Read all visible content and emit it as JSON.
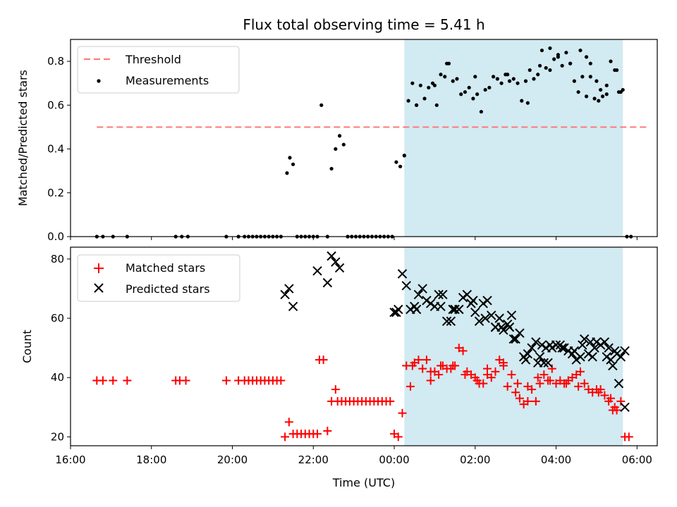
{
  "chart_data": [
    {
      "type": "scatter",
      "title": "Flux total observing time = 5.41 h",
      "ylabel": "Matched/Predicted stars",
      "xlim": [
        16.0,
        30.5
      ],
      "ylim": [
        0.0,
        0.9
      ],
      "yticks": [
        "0.0",
        "0.2",
        "0.4",
        "0.6",
        "0.8"
      ],
      "ytick_values": [
        0.0,
        0.2,
        0.4,
        0.6,
        0.8
      ],
      "grid": false,
      "legend": {
        "placement": "top-left",
        "entries": [
          "Threshold",
          "Measurements"
        ]
      },
      "shaded_span": {
        "x0": 24.25,
        "x1": 29.65,
        "color": "#add8e6"
      },
      "threshold": {
        "name": "Threshold",
        "y": 0.5,
        "x0": 16.65,
        "x1": 30.3,
        "color": "#ff7777"
      },
      "measurements": {
        "name": "Measurements",
        "color": "#000000",
        "x": [
          16.65,
          16.8,
          17.05,
          17.4,
          18.6,
          18.75,
          18.9,
          19.85,
          20.15,
          20.3,
          20.4,
          20.5,
          20.6,
          20.7,
          20.8,
          20.9,
          21.0,
          21.1,
          21.2,
          21.35,
          21.42,
          21.5,
          21.6,
          21.7,
          21.8,
          21.9,
          22.0,
          22.1,
          22.2,
          22.35,
          22.45,
          22.55,
          22.65,
          22.75,
          22.85,
          22.95,
          23.05,
          23.15,
          23.25,
          23.35,
          23.45,
          23.55,
          23.65,
          23.75,
          23.85,
          23.95,
          24.05,
          24.15,
          24.25,
          24.35,
          24.45,
          24.55,
          24.65,
          24.75,
          24.85,
          24.95,
          25.05,
          25.15,
          25.25,
          25.35,
          25.45,
          25.55,
          25.65,
          25.75,
          25.85,
          25.95,
          26.05,
          26.15,
          26.25,
          26.35,
          26.45,
          26.55,
          26.65,
          26.75,
          26.85,
          26.95,
          27.05,
          27.15,
          27.25,
          27.35,
          27.45,
          27.55,
          27.65,
          27.75,
          27.85,
          27.95,
          28.05,
          28.15,
          28.25,
          28.35,
          28.45,
          28.55,
          28.65,
          28.75,
          28.85,
          28.95,
          29.05,
          29.15,
          29.25,
          29.35,
          29.45,
          29.55,
          29.65,
          29.75,
          29.85
        ],
        "y": [
          0.0,
          0.0,
          0.0,
          0.0,
          0.0,
          0.0,
          0.0,
          0.0,
          0.0,
          0.0,
          0.0,
          0.0,
          0.0,
          0.0,
          0.0,
          0.0,
          0.0,
          0.0,
          0.0,
          0.29,
          0.36,
          0.33,
          0.0,
          0.0,
          0.0,
          0.0,
          0.0,
          0.0,
          0.6,
          0.0,
          0.31,
          0.4,
          0.46,
          0.42,
          0.0,
          0.0,
          0.0,
          0.0,
          0.0,
          0.0,
          0.0,
          0.0,
          0.0,
          0.0,
          0.0,
          0.0,
          0.34,
          0.32,
          0.37,
          0.62,
          0.7,
          0.6,
          0.69,
          0.63,
          0.68,
          0.7,
          0.6,
          0.74,
          0.73,
          0.79,
          0.71,
          0.72,
          0.65,
          0.66,
          0.68,
          0.63,
          0.65,
          0.57,
          0.67,
          0.68,
          0.73,
          0.72,
          0.7,
          0.74,
          0.71,
          0.72,
          0.7,
          0.62,
          0.71,
          0.76,
          0.72,
          0.74,
          0.85,
          0.77,
          0.86,
          0.81,
          0.83,
          0.78,
          0.84,
          0.79,
          0.71,
          0.66,
          0.73,
          0.64,
          0.73,
          0.63,
          0.62,
          0.64,
          0.65,
          0.8,
          0.76,
          0.66,
          0.67,
          0.0,
          0.0
        ],
        "points_extra_top": [
          [
            24.25,
            0.37
          ],
          [
            24.55,
            0.6
          ],
          [
            25.0,
            0.69
          ],
          [
            25.3,
            0.79
          ],
          [
            26.0,
            0.73
          ],
          [
            26.8,
            0.74
          ],
          [
            27.3,
            0.61
          ],
          [
            27.6,
            0.78
          ],
          [
            27.85,
            0.76
          ],
          [
            28.05,
            0.82
          ],
          [
            28.35,
            0.79
          ],
          [
            28.6,
            0.85
          ],
          [
            28.75,
            0.82
          ],
          [
            28.85,
            0.79
          ],
          [
            29.0,
            0.71
          ],
          [
            29.1,
            0.67
          ],
          [
            29.25,
            0.69
          ],
          [
            29.5,
            0.76
          ],
          [
            29.6,
            0.66
          ]
        ]
      }
    },
    {
      "type": "scatter",
      "xlabel": "Time (UTC)",
      "ylabel": "Count",
      "xlim": [
        16.0,
        30.5
      ],
      "ylim": [
        17,
        84
      ],
      "yticks": [
        "20",
        "40",
        "60",
        "80"
      ],
      "ytick_values": [
        20,
        40,
        60,
        80
      ],
      "xticks": [
        "16:00",
        "18:00",
        "20:00",
        "22:00",
        "00:00",
        "02:00",
        "04:00",
        "06:00"
      ],
      "xtick_values": [
        16,
        18,
        20,
        22,
        24,
        26,
        28,
        30
      ],
      "grid": false,
      "legend": {
        "placement": "top-left",
        "entries": [
          "Matched stars",
          "Predicted stars"
        ]
      },
      "shaded_span": {
        "x0": 24.25,
        "x1": 29.65,
        "color": "#add8e6"
      },
      "series": [
        {
          "name": "Matched stars",
          "marker": "plus",
          "color": "#ff0000",
          "x": [
            16.65,
            16.8,
            17.05,
            17.4,
            18.6,
            18.7,
            18.85,
            19.85,
            20.15,
            20.3,
            20.4,
            20.5,
            20.6,
            20.7,
            20.8,
            20.9,
            21.0,
            21.1,
            21.2,
            21.3,
            21.4,
            21.5,
            21.6,
            21.7,
            21.8,
            21.9,
            22.0,
            22.1,
            22.15,
            22.25,
            22.35,
            22.45,
            22.55,
            22.6,
            22.7,
            22.8,
            22.9,
            23.0,
            23.1,
            23.2,
            23.3,
            23.4,
            23.5,
            23.6,
            23.7,
            23.8,
            23.9,
            24.0,
            24.1,
            24.2,
            24.3,
            24.4,
            24.5,
            24.6,
            24.7,
            24.8,
            24.9,
            25.0,
            25.1,
            25.2,
            25.3,
            25.4,
            25.5,
            25.6,
            25.7,
            25.8,
            25.9,
            26.0,
            26.1,
            26.2,
            26.3,
            26.4,
            26.5,
            26.6,
            26.7,
            26.8,
            26.9,
            27.0,
            27.1,
            27.2,
            27.3,
            27.4,
            27.5,
            27.6,
            27.7,
            27.8,
            27.9,
            28.0,
            28.1,
            28.2,
            28.3,
            28.4,
            28.5,
            28.6,
            28.7,
            28.8,
            28.9,
            29.0,
            29.1,
            29.2,
            29.3,
            29.4,
            29.5,
            29.6,
            29.7,
            29.8
          ],
          "y": [
            39,
            39,
            39,
            39,
            39,
            39,
            39,
            39,
            39,
            39,
            39,
            39,
            39,
            39,
            39,
            39,
            39,
            39,
            39,
            20,
            25,
            21,
            21,
            21,
            21,
            21,
            21,
            21,
            46,
            46,
            22,
            32,
            36,
            32,
            32,
            32,
            32,
            32,
            32,
            32,
            32,
            32,
            32,
            32,
            32,
            32,
            32,
            21,
            20,
            28,
            44,
            37,
            45,
            46,
            43,
            46,
            39,
            42,
            41,
            44,
            43,
            43,
            44,
            50,
            49,
            42,
            41,
            40,
            38,
            38,
            41,
            40,
            42,
            46,
            44,
            37,
            41,
            35,
            33,
            31,
            37,
            36,
            32,
            38,
            41,
            39,
            43,
            38,
            39,
            38,
            39,
            40,
            41,
            42,
            38,
            36,
            35,
            36,
            36,
            34,
            32,
            29,
            29,
            32,
            20,
            20
          ],
          "points_extra": [
            [
              24.45,
              44
            ],
            [
              24.9,
              42
            ],
            [
              25.15,
              44
            ],
            [
              25.45,
              44
            ],
            [
              25.75,
              41
            ],
            [
              26.05,
              39
            ],
            [
              26.3,
              43
            ],
            [
              26.7,
              45
            ],
            [
              27.05,
              38
            ],
            [
              27.3,
              32
            ],
            [
              27.55,
              40
            ],
            [
              27.85,
              39
            ],
            [
              28.25,
              38
            ],
            [
              28.55,
              37
            ],
            [
              29.05,
              35
            ],
            [
              29.35,
              33
            ],
            [
              29.45,
              30
            ]
          ]
        },
        {
          "name": "Predicted stars",
          "marker": "x",
          "color": "#000000",
          "x": [
            21.3,
            21.4,
            21.5,
            22.1,
            22.35,
            22.45,
            22.55,
            22.65,
            24.0,
            24.1,
            24.2,
            24.3,
            24.4,
            24.5,
            24.6,
            24.7,
            24.8,
            24.9,
            25.0,
            25.1,
            25.2,
            25.3,
            25.4,
            25.5,
            25.6,
            25.7,
            25.8,
            25.9,
            26.0,
            26.1,
            26.2,
            26.3,
            26.4,
            26.5,
            26.6,
            26.7,
            26.8,
            26.9,
            27.0,
            27.1,
            27.2,
            27.3,
            27.4,
            27.5,
            27.6,
            27.7,
            27.8,
            27.9,
            28.0,
            28.1,
            28.2,
            28.3,
            28.4,
            28.5,
            28.6,
            28.7,
            28.8,
            28.9,
            29.0,
            29.1,
            29.2,
            29.3,
            29.4,
            29.5,
            29.6,
            29.7
          ],
          "y": [
            68,
            70,
            64,
            76,
            72,
            81,
            79,
            77,
            62,
            63,
            75,
            71,
            63,
            64,
            68,
            70,
            66,
            65,
            64,
            68,
            68,
            59,
            59,
            63,
            63,
            67,
            68,
            65,
            62,
            59,
            65,
            66,
            61,
            57,
            60,
            56,
            58,
            61,
            53,
            55,
            47,
            48,
            50,
            52,
            47,
            45,
            45,
            50,
            51,
            51,
            50,
            49,
            48,
            46,
            47,
            53,
            48,
            47,
            52,
            51,
            52,
            50,
            44,
            48,
            47,
            49
          ],
          "points_extra": [
            [
              24.05,
              62
            ],
            [
              24.55,
              63
            ],
            [
              25.15,
              64
            ],
            [
              25.45,
              63
            ],
            [
              25.95,
              66
            ],
            [
              26.25,
              60
            ],
            [
              26.5,
              57
            ],
            [
              26.65,
              57
            ],
            [
              26.95,
              53
            ],
            [
              27.25,
              46
            ],
            [
              27.55,
              45
            ],
            [
              27.85,
              51
            ],
            [
              28.15,
              50
            ],
            [
              28.45,
              49
            ],
            [
              28.65,
              51
            ],
            [
              28.85,
              52
            ],
            [
              28.95,
              50
            ],
            [
              29.25,
              47
            ],
            [
              29.55,
              38
            ],
            [
              29.7,
              30
            ],
            [
              29.45,
              49
            ],
            [
              29.35,
              46
            ],
            [
              27.65,
              51
            ],
            [
              27.75,
              50
            ],
            [
              26.85,
              57
            ]
          ]
        }
      ]
    }
  ]
}
